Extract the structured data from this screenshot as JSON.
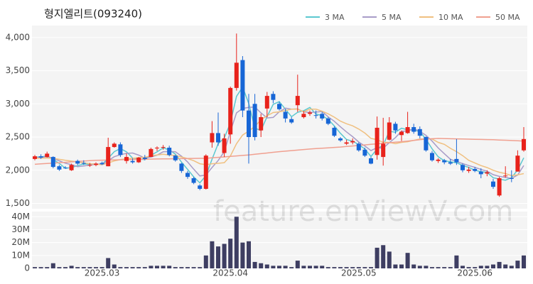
{
  "chart_data": {
    "type": "candlestick",
    "title": "형지엘리트(093240)",
    "watermark": "feature.enViewV.com",
    "categories": [
      null,
      null,
      null,
      null,
      null,
      null,
      null,
      null,
      null,
      null,
      null,
      "2025.03",
      null,
      null,
      null,
      null,
      null,
      null,
      null,
      null,
      null,
      null,
      null,
      null,
      null,
      null,
      null,
      null,
      null,
      null,
      null,
      null,
      "2025.04",
      null,
      null,
      null,
      null,
      null,
      null,
      null,
      null,
      null,
      null,
      null,
      null,
      null,
      null,
      null,
      null,
      null,
      null,
      null,
      null,
      "2025.05",
      null,
      null,
      null,
      null,
      null,
      null,
      null,
      null,
      null,
      null,
      null,
      null,
      null,
      null,
      null,
      null,
      null,
      null,
      "2025.06",
      null,
      null,
      null,
      null,
      null,
      null,
      null,
      null
    ],
    "open": [
      2170,
      2210,
      2200,
      2200,
      2060,
      2040,
      2000,
      2140,
      2110,
      2070,
      2080,
      2110,
      2060,
      2350,
      2390,
      2140,
      2140,
      2120,
      2190,
      2200,
      2330,
      2340,
      2340,
      2220,
      2100,
      1960,
      1880,
      1770,
      1720,
      2420,
      2560,
      2260,
      2540,
      3240,
      3660,
      2900,
      3000,
      2600,
      2930,
      3150,
      3000,
      2880,
      2770,
      2980,
      2800,
      2850,
      2830,
      2850,
      2780,
      2640,
      2480,
      2400,
      2420,
      2400,
      2310,
      2180,
      2230,
      2200,
      2460,
      2700,
      2530,
      2560,
      2650,
      2620,
      2500,
      2260,
      2140,
      2150,
      2120,
      2170,
      2080,
      1990,
      2020,
      1980,
      1950,
      1830,
      1620,
      1910,
      1880,
      1980,
      2300
    ],
    "high": [
      2230,
      2240,
      2280,
      2210,
      2080,
      2060,
      2100,
      2160,
      2150,
      2110,
      2120,
      2130,
      2490,
      2420,
      2420,
      2250,
      2180,
      2200,
      2230,
      2340,
      2360,
      2380,
      2370,
      2230,
      2110,
      1990,
      1900,
      1790,
      2240,
      2740,
      2870,
      2550,
      3260,
      4060,
      3720,
      3150,
      3150,
      2850,
      3180,
      3190,
      3030,
      2920,
      2800,
      3440,
      2890,
      2900,
      2900,
      2880,
      2800,
      2660,
      2500,
      2460,
      2480,
      2420,
      2340,
      2200,
      2810,
      2790,
      2800,
      2730,
      2600,
      2880,
      2700,
      2660,
      2510,
      2290,
      2180,
      2170,
      2170,
      2470,
      2100,
      2050,
      2050,
      2030,
      2000,
      1870,
      1900,
      2060,
      2000,
      2300,
      2650
    ],
    "low": [
      2150,
      2170,
      2190,
      2030,
      1990,
      2020,
      1990,
      2080,
      2080,
      2050,
      2060,
      2080,
      2060,
      2340,
      2200,
      2100,
      2100,
      2110,
      2150,
      2200,
      2290,
      2310,
      2210,
      2130,
      1960,
      1870,
      1790,
      1700,
      1710,
      2340,
      2370,
      2200,
      2400,
      3200,
      2800,
      2100,
      2450,
      2500,
      2800,
      3010,
      2900,
      2720,
      2700,
      2880,
      2780,
      2820,
      2780,
      2750,
      2680,
      2500,
      2430,
      2380,
      2390,
      2280,
      2200,
      2090,
      2160,
      2070,
      2450,
      2550,
      2440,
      2550,
      2550,
      2480,
      2280,
      2130,
      2110,
      2090,
      2080,
      2080,
      1970,
      1960,
      1970,
      1880,
      1910,
      1720,
      1600,
      1890,
      1820,
      1980,
      2280
    ],
    "close": [
      2210,
      2190,
      2250,
      2050,
      2010,
      2030,
      2080,
      2100,
      2100,
      2080,
      2100,
      2090,
      2350,
      2400,
      2230,
      2200,
      2120,
      2190,
      2170,
      2320,
      2340,
      2350,
      2230,
      2150,
      1990,
      1900,
      1810,
      1720,
      2220,
      2560,
      2420,
      2480,
      3240,
      3620,
      2900,
      2500,
      2500,
      2800,
      3120,
      3060,
      2920,
      2780,
      2720,
      3120,
      2850,
      2870,
      2820,
      2780,
      2700,
      2520,
      2450,
      2420,
      2440,
      2300,
      2220,
      2100,
      2640,
      2400,
      2720,
      2600,
      2580,
      2650,
      2580,
      2520,
      2300,
      2150,
      2160,
      2120,
      2100,
      2120,
      2000,
      2010,
      1990,
      1940,
      1970,
      1750,
      1880,
      1920,
      1870,
      2220,
      2470
    ],
    "up_color": "#e8221b",
    "down_color": "#1766d6",
    "series": [
      {
        "name": "3 MA",
        "color": "#5bc8d0",
        "values": [
          2200,
          2200,
          2217,
          2163,
          2103,
          2030,
          2040,
          2070,
          2093,
          2093,
          2093,
          2090,
          2180,
          2280,
          2327,
          2277,
          2183,
          2170,
          2160,
          2227,
          2277,
          2337,
          2307,
          2243,
          2123,
          2013,
          1900,
          1810,
          1917,
          2167,
          2400,
          2487,
          2713,
          3113,
          3253,
          3007,
          2633,
          2600,
          2807,
          2993,
          3033,
          2920,
          2807,
          2873,
          2897,
          2947,
          2847,
          2823,
          2767,
          2667,
          2557,
          2463,
          2437,
          2387,
          2320,
          2207,
          2320,
          2380,
          2587,
          2573,
          2633,
          2610,
          2603,
          2583,
          2467,
          2323,
          2203,
          2143,
          2127,
          2113,
          2073,
          2043,
          2000,
          1980,
          1967,
          1887,
          1867,
          1850,
          1890,
          2003,
          2187
        ]
      },
      {
        "name": "5 MA",
        "color": "#a89cc8",
        "values": [
          2190,
          2195,
          2205,
          2180,
          2142,
          2106,
          2084,
          2054,
          2064,
          2078,
          2092,
          2094,
          2144,
          2204,
          2234,
          2254,
          2260,
          2228,
          2182,
          2200,
          2228,
          2278,
          2282,
          2278,
          2212,
          2124,
          2016,
          1914,
          1928,
          2042,
          2146,
          2280,
          2584,
          2864,
          2932,
          2948,
          2952,
          2864,
          2788,
          2796,
          2880,
          2936,
          2920,
          2924,
          2878,
          2872,
          2876,
          2886,
          2804,
          2738,
          2654,
          2578,
          2506,
          2426,
          2366,
          2296,
          2340,
          2332,
          2416,
          2492,
          2588,
          2590,
          2626,
          2586,
          2526,
          2440,
          2336,
          2250,
          2166,
          2130,
          2100,
          2070,
          2044,
          2012,
          1986,
          1934,
          1908,
          1892,
          1878,
          1928,
          2072
        ]
      },
      {
        "name": "10 MA",
        "color": "#f0c080",
        "values": [
          2180,
          2182,
          2185,
          2178,
          2165,
          2150,
          2138,
          2125,
          2110,
          2100,
          2090,
          2084,
          2110,
          2140,
          2160,
          2175,
          2180,
          2190,
          2196,
          2218,
          2230,
          2240,
          2230,
          2222,
          2200,
          2175,
          2144,
          2098,
          2083,
          2098,
          2105,
          2114,
          2215,
          2400,
          2530,
          2590,
          2660,
          2760,
          2820,
          2870,
          2880,
          2900,
          2920,
          2920,
          2880,
          2920,
          2920,
          2890,
          2850,
          2800,
          2740,
          2700,
          2670,
          2620,
          2560,
          2480,
          2460,
          2420,
          2420,
          2400,
          2420,
          2430,
          2450,
          2470,
          2470,
          2470,
          2420,
          2390,
          2330,
          2280,
          2220,
          2150,
          2110,
          2070,
          2040,
          2000,
          1970,
          1950,
          1920,
          1930,
          1950
        ]
      },
      {
        "name": "50 MA",
        "color": "#f0a090",
        "values": [
          2090,
          2096,
          2102,
          2108,
          2114,
          2120,
          2126,
          2132,
          2138,
          2144,
          2150,
          2152,
          2154,
          2156,
          2158,
          2160,
          2162,
          2164,
          2166,
          2168,
          2170,
          2171,
          2172,
          2174,
          2175,
          2176,
          2178,
          2179,
          2180,
          2187,
          2194,
          2201,
          2209,
          2216,
          2223,
          2230,
          2240,
          2250,
          2260,
          2270,
          2280,
          2288,
          2296,
          2304,
          2312,
          2320,
          2326,
          2332,
          2338,
          2344,
          2350,
          2358,
          2366,
          2374,
          2382,
          2390,
          2398,
          2406,
          2414,
          2422,
          2430,
          2440,
          2450,
          2460,
          2470,
          2475,
          2480,
          2478,
          2475,
          2473,
          2470,
          2468,
          2466,
          2464,
          2462,
          2460,
          2456,
          2452,
          2448,
          2444,
          2440
        ]
      }
    ],
    "ylim": [
      1420,
      4180
    ],
    "yticks": [
      {
        "value": 1500,
        "label": "1,500"
      },
      {
        "value": 2000,
        "label": "2,000"
      },
      {
        "value": 2500,
        "label": "2,500"
      },
      {
        "value": 3000,
        "label": "3,000"
      },
      {
        "value": 3500,
        "label": "3,500"
      },
      {
        "value": 4000,
        "label": "4,000"
      }
    ],
    "grid": true,
    "volume": {
      "color": "#3e3e62",
      "values": [
        1,
        1,
        1,
        4,
        1,
        1,
        2,
        1,
        1,
        1,
        1,
        1,
        8,
        3,
        1,
        1,
        1,
        1,
        1,
        2,
        2,
        2,
        2,
        1,
        1,
        1,
        1,
        1,
        10,
        21,
        17,
        19,
        23,
        40,
        20,
        21,
        5,
        4,
        3,
        2,
        2,
        2,
        1,
        6,
        2,
        2,
        2,
        2,
        1,
        1,
        1,
        1,
        1,
        1,
        1,
        1,
        16,
        18,
        13,
        3,
        3,
        12,
        3,
        2,
        2,
        1,
        1,
        1,
        1,
        10,
        2,
        1,
        1,
        2,
        2,
        3,
        5,
        3,
        2,
        6,
        10
      ],
      "ylim": [
        0,
        44
      ],
      "yticks": [
        0,
        {
          "value": 10,
          "label": "10M"
        },
        {
          "value": 20,
          "label": "20M"
        },
        {
          "value": 30,
          "label": "30M"
        },
        {
          "value": 40,
          "label": "40M"
        }
      ]
    }
  }
}
